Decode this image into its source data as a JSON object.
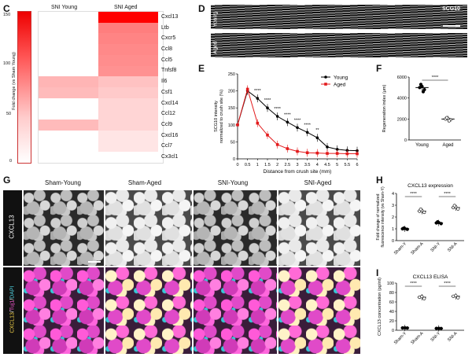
{
  "panels": {
    "C": {
      "label": "C",
      "col_headers": [
        "SNI Young",
        "SNI Aged"
      ],
      "ylabel": "Fold change (vs Sham Young)",
      "scale_ticks": [
        "150",
        "100",
        "50",
        "0"
      ],
      "genes": [
        {
          "name": "Cxcl13",
          "young": 1,
          "aged": 152
        },
        {
          "name": "Ltb",
          "young": 1,
          "aged": 30
        },
        {
          "name": "Cxcr5",
          "young": 1,
          "aged": 25
        },
        {
          "name": "Ccl8",
          "young": 1,
          "aged": 22
        },
        {
          "name": "Ccl5",
          "young": 1,
          "aged": 20
        },
        {
          "name": "Tnfsf8",
          "young": 1,
          "aged": 18
        },
        {
          "name": "Il6",
          "young": 7,
          "aged": 5
        },
        {
          "name": "Csf1",
          "young": 6,
          "aged": 4
        },
        {
          "name": "Cxcl14",
          "young": 1,
          "aged": 3
        },
        {
          "name": "Ccl12",
          "young": 1,
          "aged": 3
        },
        {
          "name": "Ccl9",
          "young": 6,
          "aged": 3
        },
        {
          "name": "Cxcl16",
          "young": 1,
          "aged": 2
        },
        {
          "name": "Ccl7",
          "young": 1,
          "aged": 2
        },
        {
          "name": "Cx3cl1",
          "young": 1,
          "aged": 1
        }
      ]
    },
    "D": {
      "label": "D",
      "title": "SCG10",
      "rows": [
        "Young",
        "Aged"
      ]
    },
    "E": {
      "label": "E",
      "chart_data": {
        "type": "line",
        "xlabel": "Distance from crush site (mm)",
        "ylabel": "SCG10 intensity normalized to crush site (%)",
        "ylabel_lines": [
          "SCG10 intensity",
          "normalized to crush site (%)"
        ],
        "x": [
          0,
          0.5,
          1,
          1.5,
          2,
          2.5,
          3,
          3.5,
          4,
          4.5,
          5,
          5.5,
          6
        ],
        "xticks": [
          "0",
          "0.5",
          "1",
          "1.5",
          "2",
          "2.5",
          "3",
          "3.5",
          "4",
          "4.5",
          "5",
          "5.5",
          "6"
        ],
        "ylim": [
          0,
          250
        ],
        "yticks": [
          "0",
          "50",
          "100",
          "150",
          "200",
          "250"
        ],
        "series": [
          {
            "name": "Young",
            "color": "#000000",
            "values": [
              100,
              200,
              178,
              150,
              125,
              108,
              92,
              78,
              62,
              35,
              28,
              25,
              24
            ]
          },
          {
            "name": "Aged",
            "color": "#e31a1c",
            "values": [
              100,
              205,
              105,
              70,
              42,
              30,
              22,
              18,
              17,
              16,
              16,
              15,
              15
            ]
          }
        ],
        "significance": "****",
        "significance_marks": [
          {
            "x": 1,
            "text": "****"
          },
          {
            "x": 1.5,
            "text": "****"
          },
          {
            "x": 2,
            "text": "****"
          },
          {
            "x": 2.5,
            "text": "****"
          },
          {
            "x": 3,
            "text": "****"
          },
          {
            "x": 3.5,
            "text": "****"
          },
          {
            "x": 4,
            "text": "**"
          }
        ],
        "legend": "top-right"
      }
    },
    "F": {
      "label": "F",
      "chart_data": {
        "type": "bar",
        "categories": [
          "Young",
          "Aged"
        ],
        "values": [
          5000,
          2000
        ],
        "ylabel": "Regeneration index (μm)",
        "ylim": [
          0,
          6000
        ],
        "yticks": [
          "0",
          "2000",
          "4000",
          "6000"
        ],
        "significance": "****"
      }
    },
    "G": {
      "label": "G",
      "col_headers": [
        "Sham-Young",
        "Sham-Aged",
        "SNI-Young",
        "SNI-Aged"
      ],
      "row1_label": "CXCL13",
      "row2_label_parts": [
        {
          "text": "CXCL13",
          "color": "#f5d44a"
        },
        {
          "text": "/",
          "color": "#ffffff"
        },
        {
          "text": "Tuj1",
          "color": "#ff5ad8"
        },
        {
          "text": "/",
          "color": "#ffffff"
        },
        {
          "text": "DAPI",
          "color": "#4fd2e0"
        }
      ]
    },
    "H": {
      "label": "H",
      "chart_data": {
        "type": "bar",
        "title": "CXCL13 expression",
        "categories": [
          "Sham-Y",
          "Sham-A",
          "SNI-Y",
          "SNI-A"
        ],
        "values": [
          1.0,
          2.5,
          1.5,
          2.8
        ],
        "ylabel": "Fold change of normalized fluorescence intensity (vs Sham-Y)",
        "ylabel_lines": [
          "Fold change of normalized",
          "fluorescence intensity (vs Sham-Y)"
        ],
        "ylim": [
          0,
          4
        ],
        "yticks": [
          "0",
          "1",
          "2",
          "3",
          "4"
        ],
        "significance": [
          "****",
          "****"
        ]
      }
    },
    "I": {
      "label": "I",
      "chart_data": {
        "type": "bar",
        "title": "CXCL13 ELISA",
        "categories": [
          "Sham-Y",
          "Sham-A",
          "SNI-Y",
          "SNI-A"
        ],
        "values": [
          5,
          70,
          4,
          72
        ],
        "ylabel": "CXCL13 concentration (pg/ml)",
        "ylim": [
          0,
          100
        ],
        "yticks": [
          "0",
          "20",
          "40",
          "60",
          "80",
          "100"
        ],
        "significance": [
          "****",
          "****"
        ]
      }
    }
  }
}
